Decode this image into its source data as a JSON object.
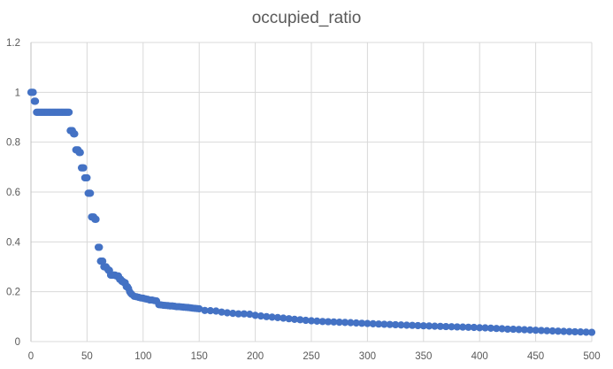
{
  "chart_data": {
    "type": "scatter",
    "title": "occupied_ratio",
    "xlabel": "",
    "ylabel": "",
    "xlim": [
      0,
      500
    ],
    "ylim": [
      0,
      1.2
    ],
    "xticks": [
      "0",
      "50",
      "100",
      "150",
      "200",
      "250",
      "300",
      "350",
      "400",
      "450",
      "500"
    ],
    "yticks": [
      "0",
      "0.2",
      "0.4",
      "0.6",
      "0.8",
      "1",
      "1.2"
    ],
    "grid": true,
    "legend": "none",
    "marker_color": "#4472c4",
    "series": [
      {
        "points": [
          [
            0,
            1.0
          ],
          [
            1,
            1.0
          ],
          [
            2,
            1.0
          ],
          [
            3,
            0.9643
          ],
          [
            4,
            0.9643
          ],
          [
            5,
            0.92
          ],
          [
            6,
            0.92
          ],
          [
            7,
            0.92
          ],
          [
            8,
            0.92
          ],
          [
            9,
            0.92
          ],
          [
            10,
            0.92
          ],
          [
            11,
            0.92
          ],
          [
            12,
            0.92
          ],
          [
            13,
            0.92
          ],
          [
            14,
            0.92
          ],
          [
            15,
            0.92
          ],
          [
            16,
            0.92
          ],
          [
            17,
            0.92
          ],
          [
            18,
            0.92
          ],
          [
            19,
            0.92
          ],
          [
            20,
            0.92
          ],
          [
            21,
            0.92
          ],
          [
            22,
            0.92
          ],
          [
            23,
            0.92
          ],
          [
            24,
            0.92
          ],
          [
            25,
            0.92
          ],
          [
            26,
            0.92
          ],
          [
            27,
            0.92
          ],
          [
            28,
            0.92
          ],
          [
            29,
            0.92
          ],
          [
            30,
            0.92
          ],
          [
            31,
            0.92
          ],
          [
            32,
            0.92
          ],
          [
            33,
            0.92
          ],
          [
            34,
            0.92
          ],
          [
            35,
            0.8462
          ],
          [
            36,
            0.8462
          ],
          [
            37,
            0.8462
          ],
          [
            38,
            0.8333
          ],
          [
            39,
            0.8333
          ],
          [
            40,
            0.7692
          ],
          [
            41,
            0.7692
          ],
          [
            42,
            0.7692
          ],
          [
            43,
            0.7586
          ],
          [
            44,
            0.7586
          ],
          [
            45,
            0.697
          ],
          [
            46,
            0.697
          ],
          [
            47,
            0.697
          ],
          [
            48,
            0.6571
          ],
          [
            49,
            0.6571
          ],
          [
            50,
            0.6571
          ],
          [
            51,
            0.5952
          ],
          [
            52,
            0.5952
          ],
          [
            53,
            0.5952
          ],
          [
            54,
            0.5
          ],
          [
            55,
            0.5
          ],
          [
            56,
            0.5
          ],
          [
            57,
            0.4906
          ],
          [
            58,
            0.4906
          ],
          [
            60,
            0.3784
          ],
          [
            61,
            0.3784
          ],
          [
            62,
            0.3226
          ],
          [
            63,
            0.3226
          ],
          [
            64,
            0.3226
          ],
          [
            65,
            0.3
          ],
          [
            66,
            0.3
          ],
          [
            67,
            0.3
          ],
          [
            68,
            0.2927
          ],
          [
            69,
            0.2857
          ],
          [
            70,
            0.2857
          ],
          [
            71,
            0.2667
          ],
          [
            72,
            0.2667
          ],
          [
            73,
            0.2667
          ],
          [
            74,
            0.2667
          ],
          [
            75,
            0.2667
          ],
          [
            76,
            0.2632
          ],
          [
            77,
            0.2632
          ],
          [
            78,
            0.2632
          ],
          [
            79,
            0.25
          ],
          [
            80,
            0.25
          ],
          [
            81,
            0.2414
          ],
          [
            82,
            0.2414
          ],
          [
            83,
            0.2364
          ],
          [
            84,
            0.2364
          ],
          [
            85,
            0.2203
          ],
          [
            86,
            0.2203
          ],
          [
            87,
            0.2131
          ],
          [
            88,
            0.2
          ],
          [
            89,
            0.1935
          ],
          [
            90,
            0.1892
          ],
          [
            92,
            0.1818
          ],
          [
            94,
            0.18
          ],
          [
            96,
            0.1774
          ],
          [
            98,
            0.175
          ],
          [
            100,
            0.1739
          ],
          [
            102,
            0.1714
          ],
          [
            104,
            0.1698
          ],
          [
            106,
            0.1667
          ],
          [
            108,
            0.1667
          ],
          [
            110,
            0.1644
          ],
          [
            112,
            0.1628
          ],
          [
            114,
            0.1481
          ],
          [
            116,
            0.1471
          ],
          [
            118,
            0.1458
          ],
          [
            120,
            0.1449
          ],
          [
            122,
            0.1441
          ],
          [
            124,
            0.1429
          ],
          [
            126,
            0.1429
          ],
          [
            128,
            0.1416
          ],
          [
            130,
            0.14
          ],
          [
            132,
            0.14
          ],
          [
            134,
            0.1391
          ],
          [
            136,
            0.1379
          ],
          [
            138,
            0.1373
          ],
          [
            140,
            0.1367
          ],
          [
            142,
            0.1356
          ],
          [
            144,
            0.1343
          ],
          [
            146,
            0.1333
          ],
          [
            148,
            0.1324
          ],
          [
            150,
            0.1316
          ],
          [
            155,
            0.125
          ],
          [
            160,
            0.1239
          ],
          [
            165,
            0.1224
          ],
          [
            170,
            0.1183
          ],
          [
            175,
            0.1154
          ],
          [
            180,
            0.1132
          ],
          [
            185,
            0.1111
          ],
          [
            190,
            0.1111
          ],
          [
            195,
            0.1095
          ],
          [
            200,
            0.1053
          ],
          [
            205,
            0.1026
          ],
          [
            210,
            0.1
          ],
          [
            215,
            0.098
          ],
          [
            220,
            0.0963
          ],
          [
            225,
            0.094
          ],
          [
            230,
            0.0917
          ],
          [
            235,
            0.0893
          ],
          [
            240,
            0.0877
          ],
          [
            245,
            0.0851
          ],
          [
            250,
            0.0833
          ],
          [
            255,
            0.082
          ],
          [
            260,
            0.0806
          ],
          [
            265,
            0.0797
          ],
          [
            270,
            0.0787
          ],
          [
            275,
            0.0777
          ],
          [
            280,
            0.0769
          ],
          [
            285,
            0.0758
          ],
          [
            290,
            0.0746
          ],
          [
            295,
            0.0735
          ],
          [
            300,
            0.0725
          ],
          [
            305,
            0.0714
          ],
          [
            310,
            0.0704
          ],
          [
            315,
            0.0694
          ],
          [
            320,
            0.0685
          ],
          [
            325,
            0.0676
          ],
          [
            330,
            0.0667
          ],
          [
            335,
            0.0658
          ],
          [
            340,
            0.065
          ],
          [
            345,
            0.0641
          ],
          [
            350,
            0.0633
          ],
          [
            355,
            0.0625
          ],
          [
            360,
            0.0617
          ],
          [
            365,
            0.061
          ],
          [
            370,
            0.0602
          ],
          [
            375,
            0.0595
          ],
          [
            380,
            0.0588
          ],
          [
            385,
            0.0581
          ],
          [
            390,
            0.0575
          ],
          [
            395,
            0.0568
          ],
          [
            400,
            0.0556
          ],
          [
            405,
            0.0549
          ],
          [
            410,
            0.0538
          ],
          [
            415,
            0.0526
          ],
          [
            420,
            0.0515
          ],
          [
            425,
            0.05
          ],
          [
            430,
            0.0495
          ],
          [
            435,
            0.0485
          ],
          [
            440,
            0.0476
          ],
          [
            445,
            0.0465
          ],
          [
            450,
            0.0455
          ],
          [
            455,
            0.0444
          ],
          [
            460,
            0.0435
          ],
          [
            465,
            0.0426
          ],
          [
            470,
            0.0417
          ],
          [
            475,
            0.0408
          ],
          [
            480,
            0.04
          ],
          [
            485,
            0.0392
          ],
          [
            490,
            0.0385
          ],
          [
            495,
            0.0377
          ],
          [
            500,
            0.037
          ]
        ]
      }
    ]
  }
}
